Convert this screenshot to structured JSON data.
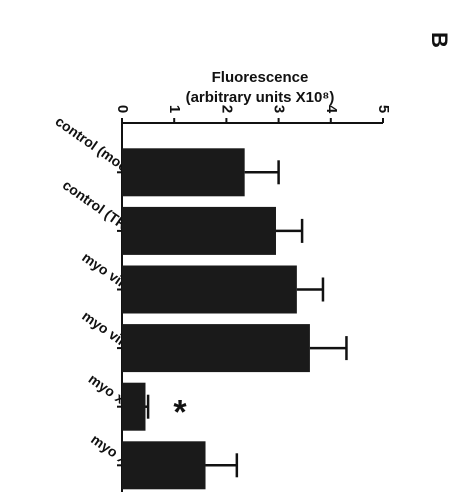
{
  "chart_data": {
    "type": "bar",
    "orientation": "horizontal",
    "panel_label": "B",
    "axis_label": [
      "Fluorescence",
      "(arbitrary units X10⁸)"
    ],
    "categories": [
      "control (mock)",
      "control (TRV)",
      "myo viii-2",
      "myo viii-1",
      "myo xi-2",
      "myo xi-f"
    ],
    "values": [
      2.35,
      2.95,
      3.35,
      3.6,
      0.45,
      1.6
    ],
    "errors": [
      0.65,
      0.5,
      0.5,
      0.7,
      0.05,
      0.6
    ],
    "color": "#1a1a1a",
    "xlim": [
      0,
      5
    ],
    "xticks": [
      0,
      1,
      2,
      3,
      4,
      5
    ],
    "annotations": [
      {
        "text": "*",
        "category": 4
      }
    ]
  }
}
